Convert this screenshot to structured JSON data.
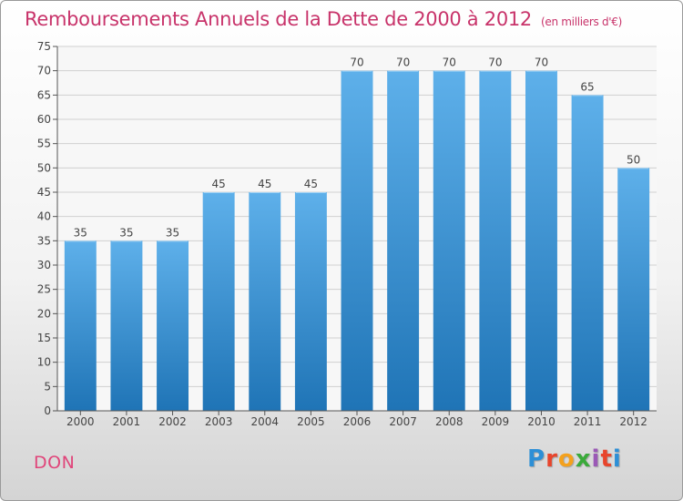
{
  "header": {
    "title": "Remboursements Annuels de la Dette de 2000 à 2012",
    "subtitle": "(en milliers d'€)"
  },
  "footer": {
    "city": "DON",
    "logo_text": "Proxiti"
  },
  "colors": {
    "title": "#c8336a",
    "bar_top": "#5eb0ea",
    "bar_bottom": "#1f74b6",
    "grid": "#d0d0d0"
  },
  "chart_data": {
    "type": "bar",
    "title": "Remboursements Annuels de la Dette de 2000 à 2012",
    "subtitle": "(en milliers d'€)",
    "xlabel": "",
    "ylabel": "",
    "categories": [
      "2000",
      "2001",
      "2002",
      "2003",
      "2004",
      "2005",
      "2006",
      "2007",
      "2008",
      "2009",
      "2010",
      "2011",
      "2012"
    ],
    "values": [
      35,
      35,
      35,
      45,
      45,
      45,
      70,
      70,
      70,
      70,
      70,
      65,
      50
    ],
    "ylim": [
      0,
      75
    ],
    "ytick_step": 5,
    "grid": true,
    "legend": "none"
  }
}
